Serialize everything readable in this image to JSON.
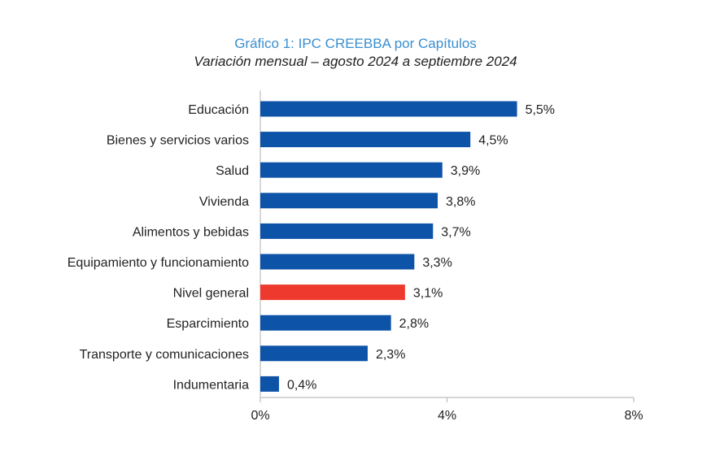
{
  "chart_data": {
    "type": "bar",
    "orientation": "horizontal",
    "title": "Gráfico 1: IPC CREEBBA por Capítulos",
    "subtitle": "Variación mensual – agosto 2024 a septiembre 2024",
    "categories": [
      "Educación",
      "Bienes y servicios varios",
      "Salud",
      "Vivienda",
      "Alimentos y bebidas",
      "Equipamiento y funcionamiento",
      "Nivel general",
      "Esparcimiento",
      "Transporte y comunicaciones",
      "Indumentaria"
    ],
    "values": [
      5.5,
      4.5,
      3.9,
      3.8,
      3.7,
      3.3,
      3.1,
      2.8,
      2.3,
      0.4
    ],
    "value_labels": [
      "5,5%",
      "4,5%",
      "3,9%",
      "3,8%",
      "3,7%",
      "3,3%",
      "3,1%",
      "2,8%",
      "2,3%",
      "0,4%"
    ],
    "highlight_category": "Nivel general",
    "xlim": [
      0,
      8
    ],
    "xticks": [
      0,
      4,
      8
    ],
    "xtick_labels": [
      "0%",
      "4%",
      "8%"
    ],
    "grid": false,
    "legend": "none",
    "colors": {
      "bar": "#0d53a8",
      "highlight": "#ee3a2e",
      "title": "#3a8fd0",
      "axis": "#bdbdbd"
    }
  }
}
